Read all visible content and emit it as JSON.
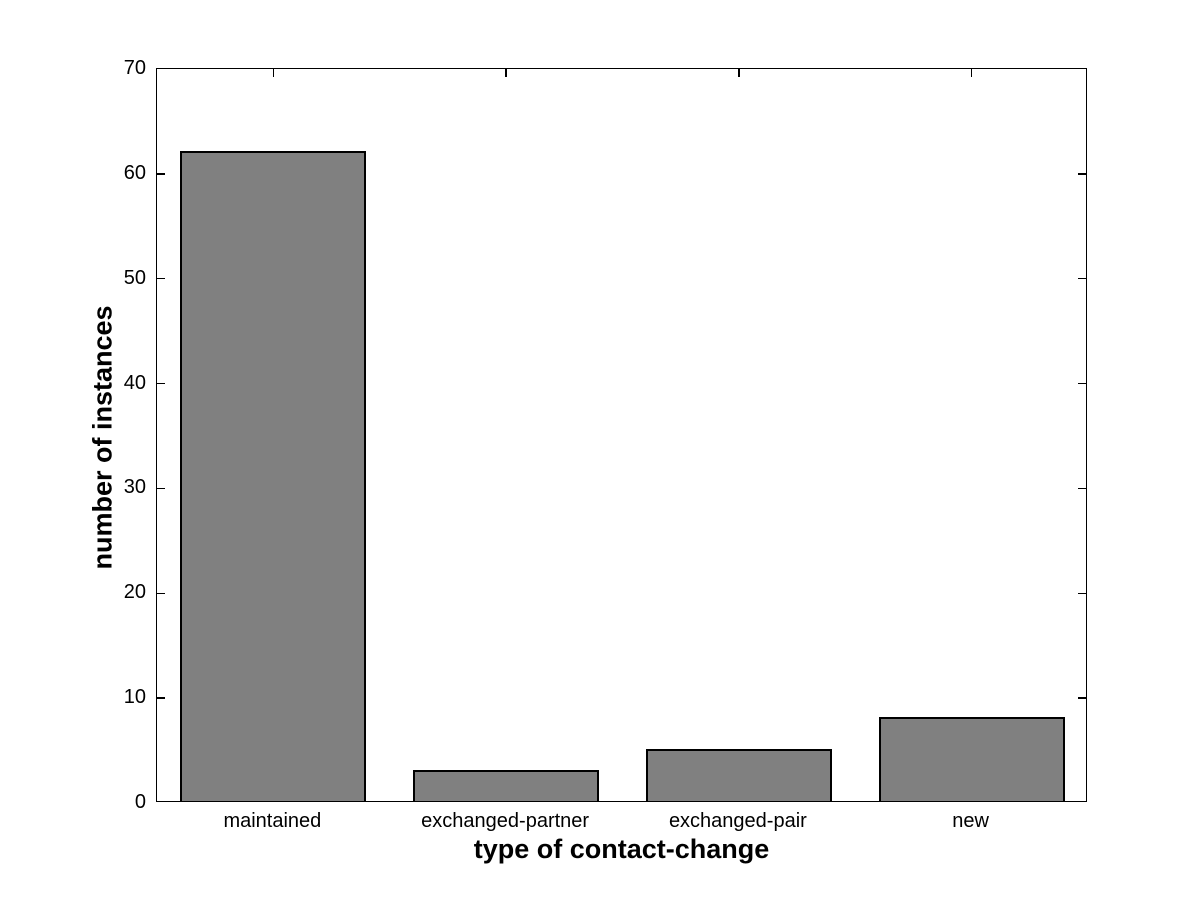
{
  "chart_data": {
    "type": "bar",
    "categories": [
      "maintained",
      "exchanged-partner",
      "exchanged-pair",
      "new"
    ],
    "values": [
      62,
      3,
      5,
      8
    ],
    "title": "",
    "xlabel": "type of contact-change",
    "ylabel": "number of instances",
    "ylim": [
      0,
      70
    ],
    "yticks": [
      0,
      10,
      20,
      30,
      40,
      50,
      60,
      70
    ],
    "grid": false,
    "legend": "none",
    "bar_width_fraction": 0.8,
    "tick_direction": "in",
    "colors": {
      "bar_fill": "#808080",
      "bar_edge": "#000000",
      "axis": "#000000",
      "background": "#ffffff",
      "text": "#000000"
    }
  }
}
